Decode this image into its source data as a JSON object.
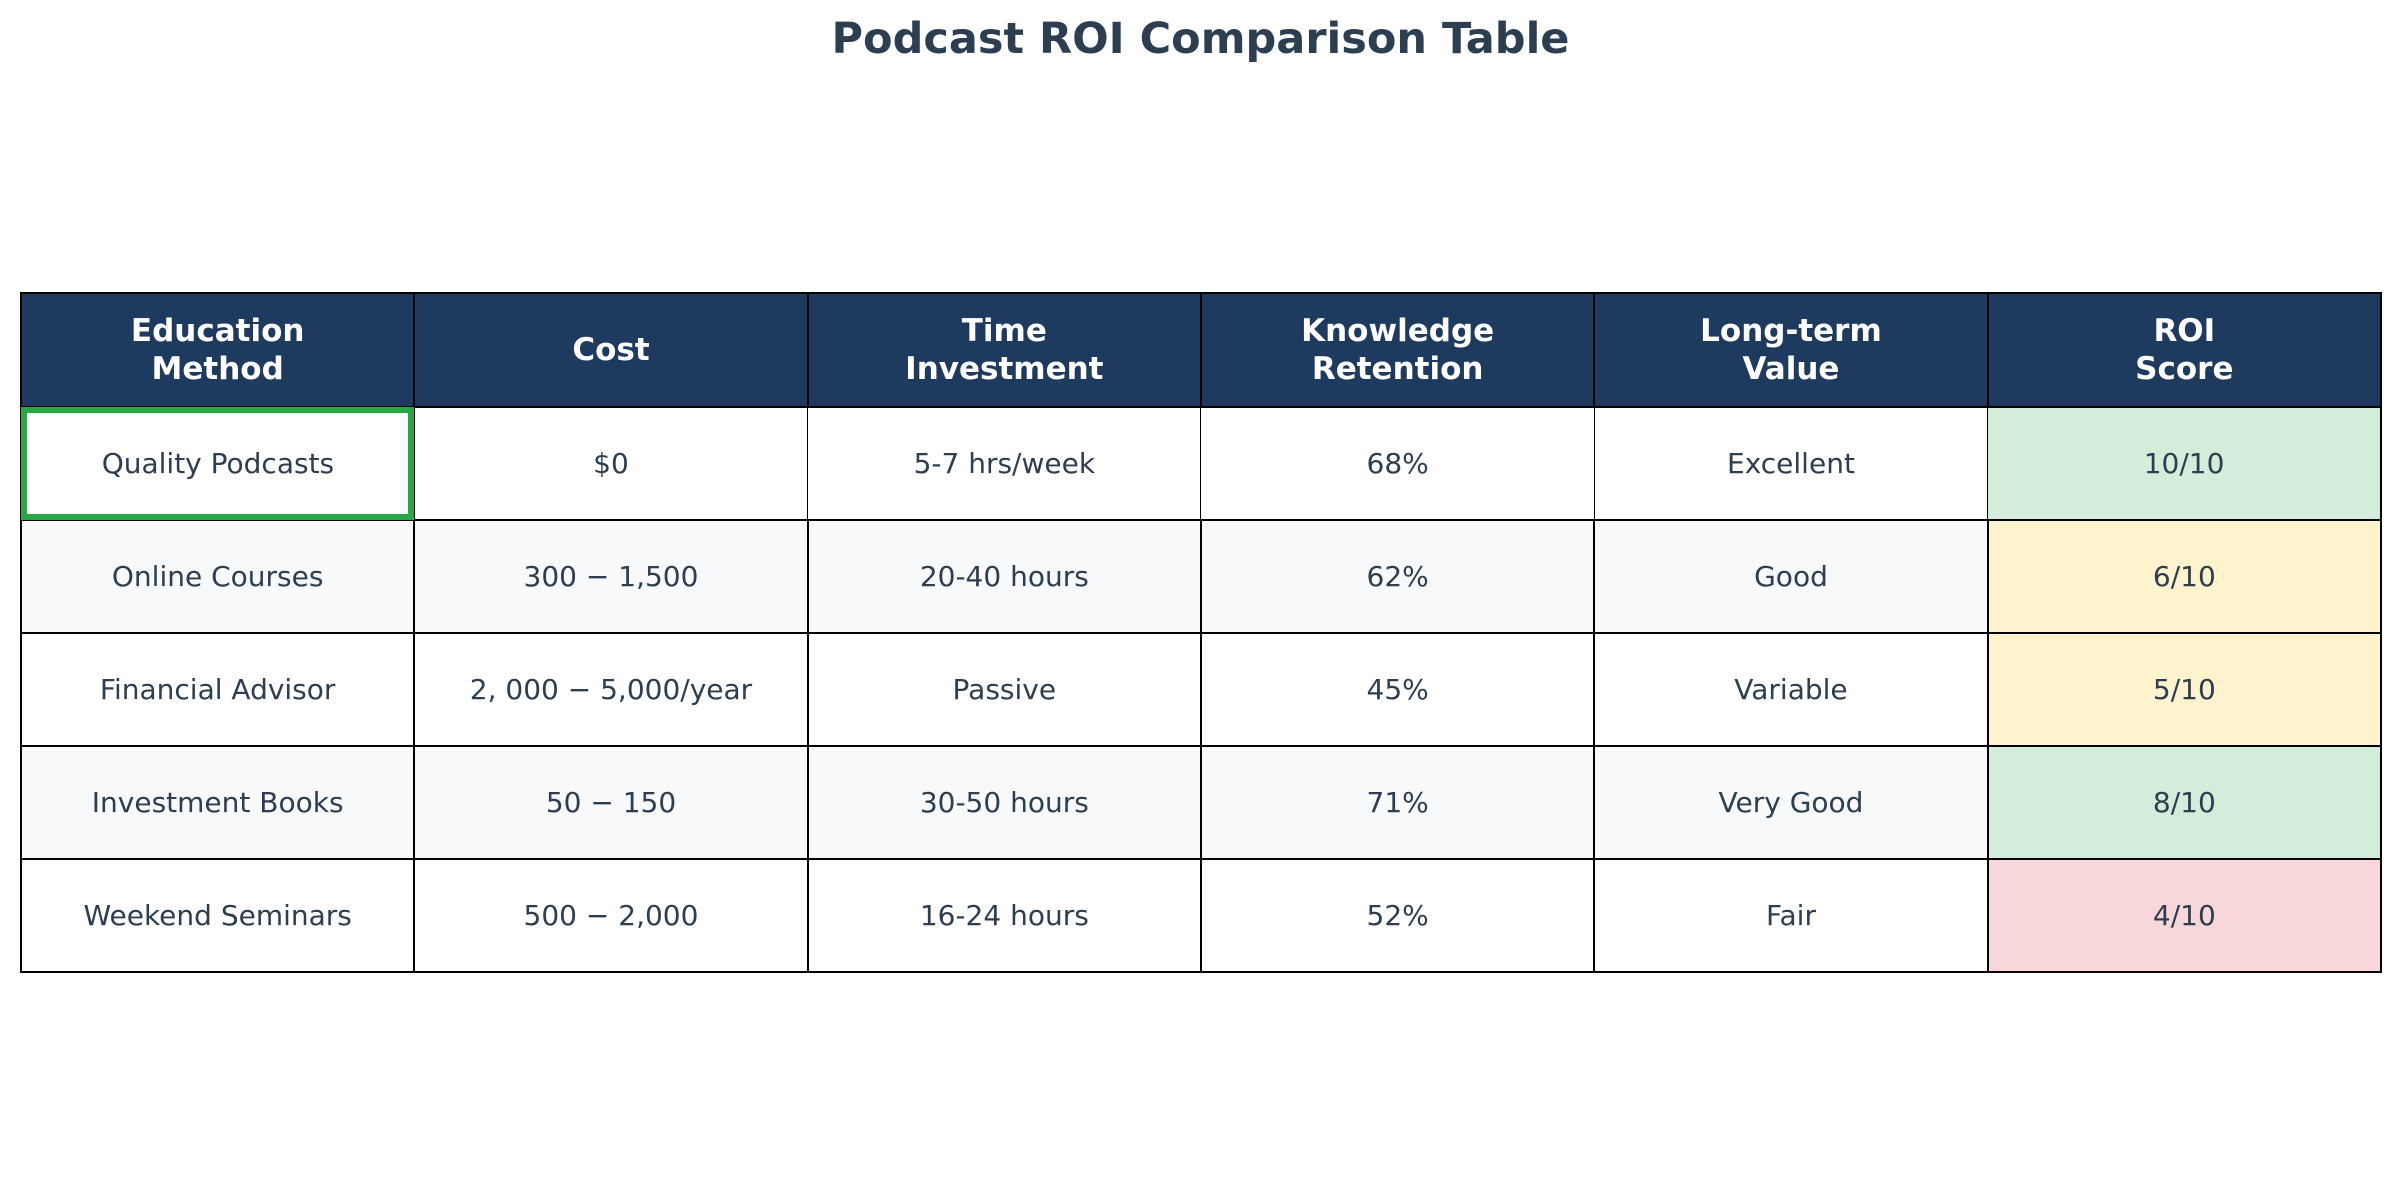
{
  "chart_data": {
    "type": "table",
    "title": "Podcast ROI Comparison Table",
    "columns": [
      "Education\nMethod",
      "Cost",
      "Time\nInvestment",
      "Knowledge\nRetention",
      "Long-term\nValue",
      "ROI\nScore"
    ],
    "rows": [
      [
        "Quality Podcasts",
        "$0",
        "5-7 hrs/week",
        "68%",
        "Excellent",
        "10/10"
      ],
      [
        "Online Courses",
        "300 − 1,500",
        "20-40 hours",
        "62%",
        "Good",
        "6/10"
      ],
      [
        "Financial Advisor",
        "2, 000 − 5,000/year",
        "Passive",
        "45%",
        "Variable",
        "5/10"
      ],
      [
        "Investment Books",
        "50 − 150",
        "30-50 hours",
        "71%",
        "Very Good",
        "8/10"
      ],
      [
        "Weekend Seminars",
        "500 − 2,000",
        "16-24 hours",
        "52%",
        "Fair",
        "4/10"
      ]
    ],
    "highlighted_cell": {
      "row": 0,
      "column": 0,
      "color": "#28a745"
    },
    "score_colors": [
      "#d4edda",
      "#fff3cd",
      "#fff3cd",
      "#d4edda",
      "#f8d7da"
    ],
    "colors": {
      "header_bg": "#1f3a5f",
      "header_text": "#ffffff",
      "cell_text": "#2c3e50",
      "row_even": "#ffffff",
      "row_odd": "#f7f9fb"
    }
  }
}
